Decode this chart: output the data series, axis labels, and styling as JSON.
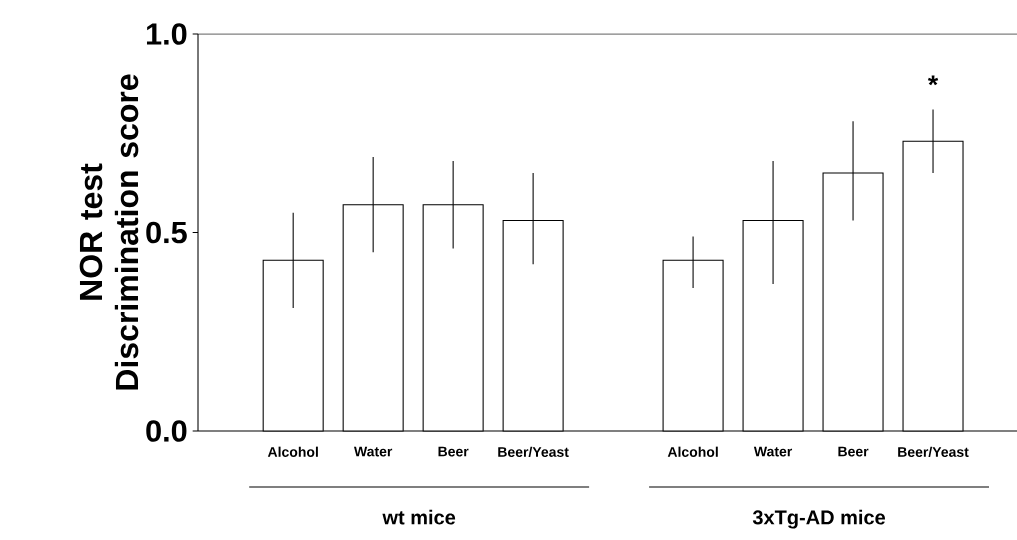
{
  "chart_data": {
    "type": "bar",
    "ylabel": "NOR test Discrimination score",
    "categories": [
      "Alcohol",
      "Water",
      "Beer",
      "Beer/Yeast",
      null,
      "Alcohol",
      "Water",
      "Beer",
      "Beer/Yeast"
    ],
    "values": [
      0.43,
      0.57,
      0.57,
      0.53,
      null,
      0.43,
      0.53,
      0.65,
      0.73
    ],
    "errors": [
      [
        0.31,
        0.55
      ],
      [
        0.45,
        0.69
      ],
      [
        0.46,
        0.68
      ],
      [
        0.42,
        0.65
      ],
      null,
      [
        0.36,
        0.49
      ],
      [
        0.37,
        0.68
      ],
      [
        0.53,
        0.78
      ],
      [
        0.65,
        0.81
      ]
    ],
    "color": "#ffffff",
    "ylim": [
      0,
      1.0
    ],
    "yticks": [
      {
        "value": 0,
        "label": "0.0"
      },
      {
        "value": 0.5,
        "label": "0.5"
      },
      {
        "value": 1.0,
        "label": "1.0"
      }
    ],
    "annotations": [
      "wt mice",
      "3xTg-AD mice",
      "*"
    ],
    "grid": false
  }
}
